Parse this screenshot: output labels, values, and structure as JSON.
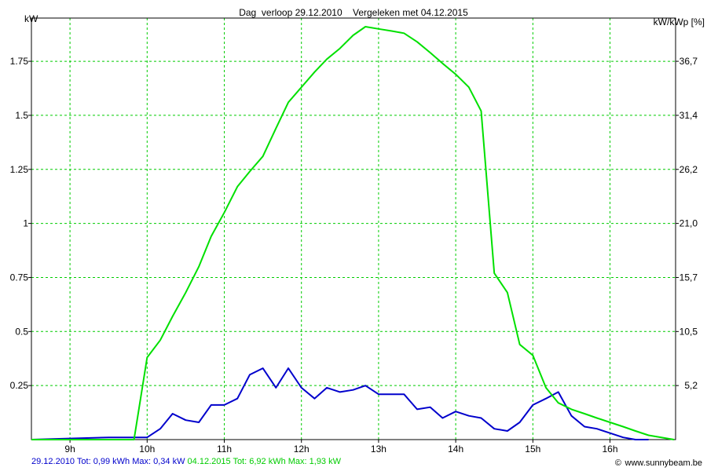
{
  "chart_data": {
    "type": "line",
    "title": "Dag  verloop 29.12.2010    Vergeleken met 04.12.2015",
    "ylabel_left": "kW",
    "ylabel_right": "kW/kWp [%]",
    "x_range": [
      8.5,
      16.85
    ],
    "y_range": [
      0,
      1.95
    ],
    "x_ticks": [
      {
        "value": 9,
        "label": "9h"
      },
      {
        "value": 10,
        "label": "10h"
      },
      {
        "value": 11,
        "label": "11h"
      },
      {
        "value": 12,
        "label": "12h"
      },
      {
        "value": 13,
        "label": "13h"
      },
      {
        "value": 14,
        "label": "14h"
      },
      {
        "value": 15,
        "label": "15h"
      },
      {
        "value": 16,
        "label": "16h"
      }
    ],
    "y_ticks_left": [
      {
        "value": 0.25,
        "label": "0.25"
      },
      {
        "value": 0.5,
        "label": "0.5"
      },
      {
        "value": 0.75,
        "label": "0.75"
      },
      {
        "value": 1.0,
        "label": "1"
      },
      {
        "value": 1.25,
        "label": "1.25"
      },
      {
        "value": 1.5,
        "label": "1.5"
      },
      {
        "value": 1.75,
        "label": "1.75"
      }
    ],
    "y_ticks_right": [
      {
        "value": 0.25,
        "label": "5,2"
      },
      {
        "value": 0.5,
        "label": "10,5"
      },
      {
        "value": 0.75,
        "label": "15,7"
      },
      {
        "value": 1.0,
        "label": "21,0"
      },
      {
        "value": 1.25,
        "label": "26,2"
      },
      {
        "value": 1.5,
        "label": "31,4"
      },
      {
        "value": 1.75,
        "label": "36,7"
      }
    ],
    "grid": true,
    "series": [
      {
        "name": "29.12.2010",
        "color": "#0000cc",
        "x": [
          8.5,
          9.5,
          10.0,
          10.17,
          10.33,
          10.5,
          10.67,
          10.83,
          11.0,
          11.17,
          11.33,
          11.5,
          11.67,
          11.83,
          12.0,
          12.17,
          12.33,
          12.5,
          12.67,
          12.83,
          13.0,
          13.17,
          13.33,
          13.5,
          13.67,
          13.83,
          14.0,
          14.17,
          14.33,
          14.5,
          14.67,
          14.83,
          15.0,
          15.17,
          15.33,
          15.5,
          15.67,
          15.83,
          16.0,
          16.17,
          16.33,
          16.5
        ],
        "values": [
          0,
          0.01,
          0.01,
          0.05,
          0.12,
          0.09,
          0.08,
          0.16,
          0.16,
          0.19,
          0.3,
          0.33,
          0.24,
          0.33,
          0.24,
          0.19,
          0.24,
          0.22,
          0.23,
          0.25,
          0.21,
          0.21,
          0.21,
          0.14,
          0.15,
          0.1,
          0.13,
          0.11,
          0.1,
          0.05,
          0.04,
          0.08,
          0.16,
          0.19,
          0.22,
          0.11,
          0.06,
          0.05,
          0.03,
          0.01,
          0.0,
          0.0
        ]
      },
      {
        "name": "04.12.2015",
        "color": "#00e000",
        "x": [
          8.5,
          9.0,
          9.5,
          9.83,
          10.0,
          10.17,
          10.33,
          10.5,
          10.67,
          10.83,
          11.0,
          11.17,
          11.33,
          11.5,
          11.67,
          11.83,
          12.0,
          12.17,
          12.33,
          12.5,
          12.67,
          12.83,
          13.0,
          13.17,
          13.33,
          13.5,
          13.67,
          13.83,
          14.0,
          14.17,
          14.33,
          14.5,
          14.67,
          14.83,
          15.0,
          15.17,
          15.33,
          15.5,
          15.67,
          15.83,
          16.0,
          16.17,
          16.33,
          16.5,
          16.83
        ],
        "values": [
          0,
          0,
          0,
          0,
          0.38,
          0.46,
          0.57,
          0.68,
          0.8,
          0.94,
          1.05,
          1.17,
          1.24,
          1.31,
          1.44,
          1.56,
          1.63,
          1.7,
          1.76,
          1.81,
          1.87,
          1.91,
          1.9,
          1.89,
          1.88,
          1.84,
          1.79,
          1.74,
          1.69,
          1.63,
          1.52,
          0.77,
          0.68,
          0.44,
          0.39,
          0.24,
          0.17,
          0.14,
          0.12,
          0.1,
          0.08,
          0.06,
          0.04,
          0.02,
          0.0
        ]
      }
    ]
  },
  "footer": {
    "blue_text": "29.12.2010 Tot: 0,99 kWh Max: 0,34 kW",
    "green_text": "04.12.2015 Tot: 6,92 kWh Max: 1,93 kW",
    "credit": "www.sunnybeam.be",
    "credit_icon": "©"
  }
}
